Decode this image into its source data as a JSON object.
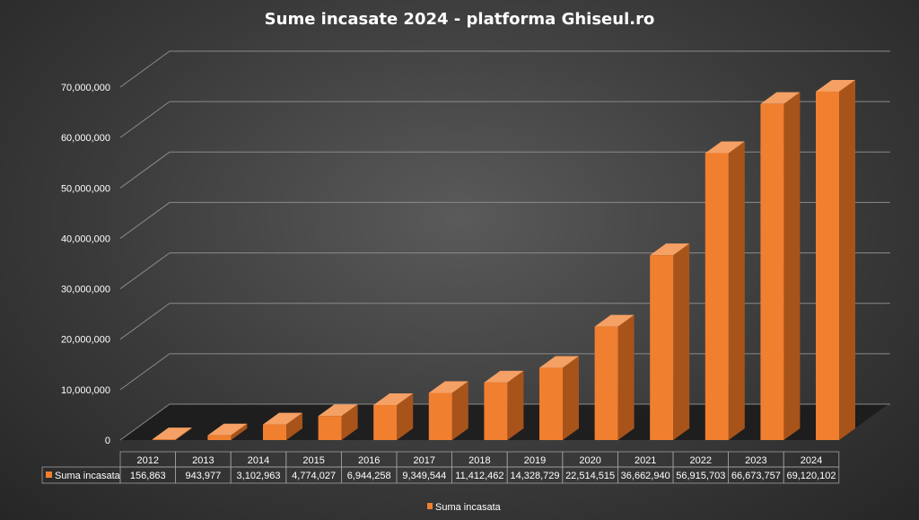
{
  "chart_data": {
    "type": "bar",
    "title": "Sume incasate 2024 - platforma Ghiseul.ro",
    "categories": [
      "2012",
      "2013",
      "2014",
      "2015",
      "2016",
      "2017",
      "2018",
      "2019",
      "2020",
      "2021",
      "2022",
      "2023",
      "2024"
    ],
    "series": [
      {
        "name": "Suma incasata",
        "values": [
          156863,
          943977,
          3102963,
          4774027,
          6944258,
          9349544,
          11412462,
          14328729,
          22514515,
          36662940,
          56915703,
          66673757,
          69120102
        ],
        "labels": [
          "156,863",
          "943,977",
          "3,102,963",
          "4,774,027",
          "6,944,258",
          "9,349,544",
          "11,412,462",
          "14,328,729",
          "22,514,515",
          "36,662,940",
          "56,915,703",
          "66,673,757",
          "69,120,102"
        ]
      }
    ],
    "ylim": [
      0,
      70000000
    ],
    "yticks": [
      "0",
      "10,000,000",
      "20,000,000",
      "30,000,000",
      "40,000,000",
      "50,000,000",
      "60,000,000",
      "70,000,000"
    ],
    "grid": true,
    "legend_position": "bottom",
    "data_table": true,
    "three_d": true
  },
  "colors": {
    "bar_front": "#f07f30",
    "bar_side": "#a8531a",
    "bar_top": "#f5a064",
    "grid": "#8a8a8a"
  }
}
